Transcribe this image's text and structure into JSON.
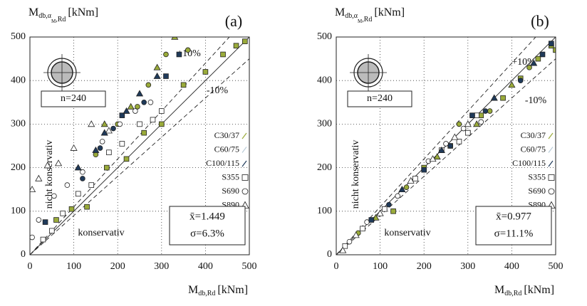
{
  "chart_data": [
    {
      "type": "scatter",
      "panel_label": "(a)",
      "ylabel": "M",
      "ylabel_sub": "db,α",
      "ylabel_subsub": "M",
      "ylabel_sub2": ",Rd",
      "ylabel_unit": "[kNm]",
      "xlabel": "M",
      "xlabel_sub": "db,Rd",
      "xlabel_unit": "[kNm]",
      "xlim": [
        0,
        500
      ],
      "ylim": [
        0,
        500
      ],
      "xticks": [
        0,
        100,
        200,
        300,
        400,
        500
      ],
      "yticks": [
        0,
        100,
        200,
        300,
        400,
        500
      ],
      "grid": true,
      "ref_slopes": [
        1,
        1.1,
        0.9
      ],
      "upper_label": "+10%",
      "lower_label": "-10%",
      "count_label": "n=240",
      "unsafe_label": "nicht konservativ",
      "safe_label": "konservativ",
      "mean_label": "x̄=1.449",
      "sigma_label": "σ=6.3%",
      "legend": [
        {
          "name": "C30/37",
          "color": "#9aab3a"
        },
        {
          "name": "C60/75",
          "color": "#b9cbd8"
        },
        {
          "name": "C100/115",
          "color": "#1f3a5a"
        },
        {
          "name": "S355",
          "marker": "square"
        },
        {
          "name": "S690",
          "marker": "circle"
        },
        {
          "name": "S890",
          "marker": "triangle"
        }
      ],
      "series": [
        {
          "color": "#9aab3a",
          "marker": "square",
          "x": [
            60,
            95,
            130,
            175,
            220,
            260,
            300,
            350,
            400,
            440,
            470,
            490
          ],
          "values": [
            80,
            105,
            110,
            200,
            220,
            280,
            300,
            390,
            420,
            460,
            480,
            490
          ]
        },
        {
          "color": "#9aab3a",
          "marker": "circle",
          "x": [
            150,
            200,
            245,
            270,
            310,
            360
          ],
          "values": [
            230,
            300,
            340,
            390,
            460,
            470
          ]
        },
        {
          "color": "#9aab3a",
          "marker": "triangle",
          "x": [
            170,
            230,
            290,
            330
          ],
          "values": [
            300,
            340,
            430,
            500
          ]
        },
        {
          "color": "#ffffff",
          "marker": "square",
          "x": [
            30,
            50,
            75,
            110,
            140,
            180,
            210,
            250,
            280,
            300
          ],
          "values": [
            35,
            55,
            95,
            140,
            160,
            235,
            255,
            300,
            310,
            330
          ]
        },
        {
          "color": "#ffffff",
          "marker": "circle",
          "x": [
            5,
            20,
            55,
            85,
            120,
            165,
            205,
            240,
            275
          ],
          "values": [
            40,
            80,
            135,
            160,
            190,
            260,
            300,
            330,
            350
          ]
        },
        {
          "color": "#ffffff",
          "marker": "triangle",
          "x": [
            5,
            20,
            40,
            65,
            100,
            140,
            180
          ],
          "values": [
            150,
            175,
            205,
            210,
            245,
            300,
            285
          ]
        },
        {
          "color": "#1f3a5a",
          "marker": "square",
          "x": [
            35,
            210,
            310,
            340
          ],
          "values": [
            75,
            320,
            410,
            460
          ]
        },
        {
          "color": "#1f3a5a",
          "marker": "circle",
          "x": [
            120,
            160,
            190,
            260
          ],
          "values": [
            175,
            245,
            290,
            350
          ]
        },
        {
          "color": "#1f3a5a",
          "marker": "triangle",
          "x": [
            110,
            150,
            170,
            220,
            250,
            290
          ],
          "values": [
            200,
            240,
            280,
            330,
            370,
            410
          ]
        }
      ]
    },
    {
      "type": "scatter",
      "panel_label": "(b)",
      "ylabel": "M",
      "ylabel_sub": "db,α",
      "ylabel_subsub": "M",
      "ylabel_sub2": ",Rd",
      "ylabel_unit": "[kNm]",
      "xlabel": "M",
      "xlabel_sub": "db,Rd",
      "xlabel_unit": "[kNm]",
      "xlim": [
        0,
        500
      ],
      "ylim": [
        0,
        500
      ],
      "xticks": [
        0,
        100,
        200,
        300,
        400,
        500
      ],
      "yticks": [
        0,
        100,
        200,
        300,
        400,
        500
      ],
      "grid": true,
      "ref_slopes": [
        1,
        1.1,
        0.9
      ],
      "upper_label": "+10%",
      "lower_label": "-10%",
      "count_label": "n=240",
      "unsafe_label": "nicht konservativ",
      "safe_label": "konservativ",
      "mean_label": "x̄=0.977",
      "sigma_label": "σ=11.1%",
      "legend": [
        {
          "name": "C30/37",
          "color": "#9aab3a"
        },
        {
          "name": "C60/75",
          "color": "#b9cbd8"
        },
        {
          "name": "C100/115",
          "color": "#1f3a5a"
        },
        {
          "name": "S355",
          "marker": "square"
        },
        {
          "name": "S690",
          "marker": "circle"
        },
        {
          "name": "S890",
          "marker": "triangle"
        }
      ],
      "series": [
        {
          "color": "#9aab3a",
          "marker": "square",
          "x": [
            130,
            200,
            260,
            300,
            330,
            380,
            420,
            460,
            490,
            500
          ],
          "values": [
            100,
            200,
            250,
            280,
            320,
            360,
            405,
            450,
            480,
            470
          ]
        },
        {
          "color": "#9aab3a",
          "marker": "circle",
          "x": [
            50,
            160,
            280,
            350,
            440
          ],
          "values": [
            50,
            155,
            300,
            330,
            430
          ]
        },
        {
          "color": "#9aab3a",
          "marker": "triangle",
          "x": [
            90,
            230,
            320,
            400
          ],
          "values": [
            85,
            225,
            300,
            390
          ]
        },
        {
          "color": "#ffffff",
          "marker": "square",
          "x": [
            20,
            60,
            110,
            180,
            240,
            280,
            300,
            320
          ],
          "values": [
            20,
            60,
            105,
            175,
            240,
            260,
            280,
            320
          ]
        },
        {
          "color": "#ffffff",
          "marker": "circle",
          "x": [
            30,
            70,
            140,
            210,
            250,
            290,
            310,
            330
          ],
          "values": [
            30,
            75,
            135,
            215,
            255,
            290,
            320,
            305
          ]
        },
        {
          "color": "#ffffff",
          "marker": "triangle",
          "x": [
            15,
            45,
            100,
            170,
            220,
            270,
            300
          ],
          "values": [
            10,
            45,
            95,
            170,
            220,
            270,
            300
          ]
        },
        {
          "color": "#1f3a5a",
          "marker": "square",
          "x": [
            80,
            200,
            310,
            470,
            490
          ],
          "values": [
            80,
            195,
            320,
            460,
            485
          ]
        },
        {
          "color": "#1f3a5a",
          "marker": "circle",
          "x": [
            120,
            260,
            340,
            420
          ],
          "values": [
            115,
            250,
            330,
            400
          ]
        },
        {
          "color": "#1f3a5a",
          "marker": "triangle",
          "x": [
            150,
            240,
            360,
            450
          ],
          "values": [
            150,
            240,
            360,
            440
          ]
        }
      ]
    }
  ]
}
